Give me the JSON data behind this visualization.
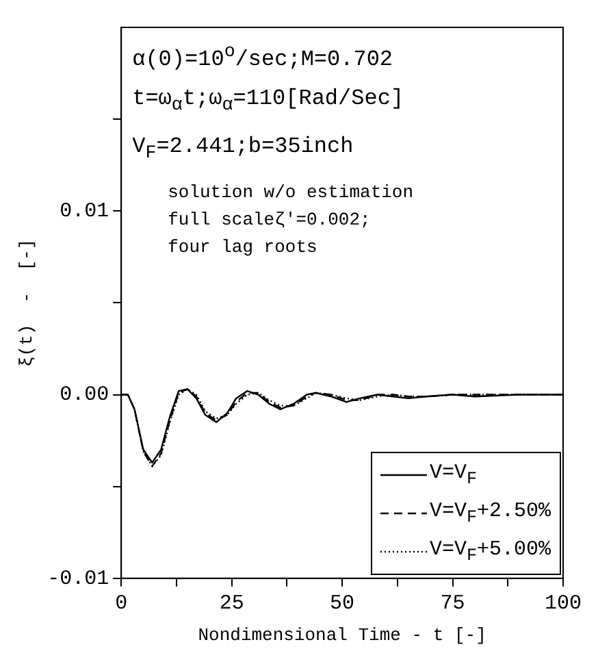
{
  "chart_data": {
    "type": "line",
    "xlabel": "Nondimensional Time - t [-]",
    "ylabel": "ξ(t)  -  [-]",
    "xlim": [
      0,
      100
    ],
    "ylim": [
      -0.01,
      0.02
    ],
    "xticks": [
      {
        "value": 0,
        "label": "0"
      },
      {
        "value": 12.5,
        "label": null
      },
      {
        "value": 25,
        "label": "25"
      },
      {
        "value": 37.5,
        "label": null
      },
      {
        "value": 50,
        "label": "50"
      },
      {
        "value": 62.5,
        "label": null
      },
      {
        "value": 75,
        "label": "75"
      },
      {
        "value": 87.5,
        "label": null
      },
      {
        "value": 100,
        "label": "100"
      }
    ],
    "yticks": [
      {
        "value": -0.01,
        "label": "-0.01"
      },
      {
        "value": -0.005,
        "label": null
      },
      {
        "value": 0,
        "label": "0.00"
      },
      {
        "value": 0.005,
        "label": null
      },
      {
        "value": 0.01,
        "label": "0.01"
      },
      {
        "value": 0.015,
        "label": null
      }
    ],
    "grid": false,
    "legend": "bottom right",
    "marker": "none",
    "annotations": [
      "α(0)=10$^{o}$/sec;M=0.702",
      "t=ω$_{α}$t;ω$_{α}$=110[Rad/Sec]",
      "V$_{F}$=2.441;b=35inch",
      "solution w/o estimation",
      "full scaleζ′=0.002;",
      "four lag roots"
    ],
    "x": [
      0,
      1.5,
      3,
      5,
      7,
      9,
      11,
      13,
      15,
      17,
      19,
      21.5,
      24,
      26,
      28.5,
      31,
      33.5,
      36,
      39,
      42,
      44,
      47.5,
      51,
      54,
      58,
      61.5,
      65,
      69,
      75,
      80,
      90,
      100
    ],
    "series": [
      {
        "name": "V=V$_{F}$",
        "color": "#000000",
        "line_style": "solid",
        "values": [
          0,
          0,
          -0.0008,
          -0.003,
          -0.0037,
          -0.003,
          -0.0012,
          0.0002,
          0.0003,
          -0.0002,
          -0.0011,
          -0.0015,
          -0.001,
          -0.0002,
          0.0002,
          0,
          -0.0005,
          -0.0008,
          -0.0005,
          0,
          0.0001,
          -0.0001,
          -0.0004,
          -0.0002,
          0,
          -0.0001,
          -0.0002,
          -0.0001,
          0,
          -0.0001,
          0,
          0
        ]
      },
      {
        "name": "V=V$_{F}$+2.50%",
        "color": "#000000",
        "line_style": "dashed",
        "values": [
          0,
          0,
          -0.0008,
          -0.0031,
          -0.0039,
          -0.0032,
          -0.0014,
          0.0001,
          0.0003,
          -0.0001,
          -0.001,
          -0.0014,
          -0.0011,
          -0.0004,
          0.0001,
          0.0001,
          -0.0004,
          -0.0007,
          -0.0006,
          -0.0001,
          0.0001,
          0,
          -0.0003,
          -0.0003,
          0,
          0,
          -0.0001,
          -0.0001,
          0,
          0,
          0,
          0
        ]
      },
      {
        "name": "V=V$_{F}$+5.00%",
        "color": "#000000",
        "line_style": "dotted",
        "values": [
          0,
          0,
          -0.0008,
          -0.0031,
          -0.0039,
          -0.0033,
          -0.0015,
          0,
          0.0003,
          0,
          -0.0009,
          -0.0013,
          -0.0011,
          -0.0005,
          0,
          0.0001,
          -0.0003,
          -0.0006,
          -0.0006,
          -0.0002,
          0.0001,
          0,
          -0.0002,
          -0.0003,
          -0.0001,
          0,
          -0.0001,
          -0.0001,
          0,
          0,
          0,
          0
        ]
      }
    ]
  }
}
